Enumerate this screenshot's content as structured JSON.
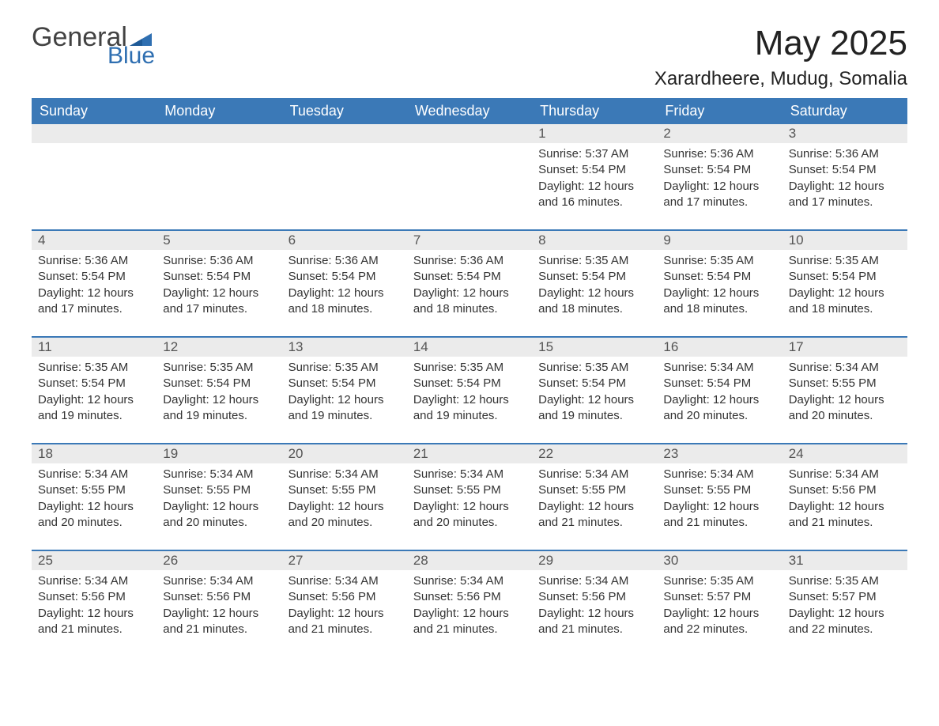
{
  "brand": {
    "word1": "General",
    "word2": "Blue"
  },
  "colors": {
    "header_bg": "#3b79b7",
    "header_text": "#ffffff",
    "daynum_bg": "#ebebeb",
    "row_divider": "#3b79b7",
    "brand_blue": "#2f6fb1",
    "body_text": "#333333",
    "page_bg": "#ffffff"
  },
  "header": {
    "month_title": "May 2025",
    "location": "Xarardheere, Mudug, Somalia"
  },
  "weekdays": [
    "Sunday",
    "Monday",
    "Tuesday",
    "Wednesday",
    "Thursday",
    "Friday",
    "Saturday"
  ],
  "weeks": [
    [
      {
        "day": "",
        "sunrise": "",
        "sunset": "",
        "daylight": ""
      },
      {
        "day": "",
        "sunrise": "",
        "sunset": "",
        "daylight": ""
      },
      {
        "day": "",
        "sunrise": "",
        "sunset": "",
        "daylight": ""
      },
      {
        "day": "",
        "sunrise": "",
        "sunset": "",
        "daylight": ""
      },
      {
        "day": "1",
        "sunrise": "Sunrise: 5:37 AM",
        "sunset": "Sunset: 5:54 PM",
        "daylight": "Daylight: 12 hours and 16 minutes."
      },
      {
        "day": "2",
        "sunrise": "Sunrise: 5:36 AM",
        "sunset": "Sunset: 5:54 PM",
        "daylight": "Daylight: 12 hours and 17 minutes."
      },
      {
        "day": "3",
        "sunrise": "Sunrise: 5:36 AM",
        "sunset": "Sunset: 5:54 PM",
        "daylight": "Daylight: 12 hours and 17 minutes."
      }
    ],
    [
      {
        "day": "4",
        "sunrise": "Sunrise: 5:36 AM",
        "sunset": "Sunset: 5:54 PM",
        "daylight": "Daylight: 12 hours and 17 minutes."
      },
      {
        "day": "5",
        "sunrise": "Sunrise: 5:36 AM",
        "sunset": "Sunset: 5:54 PM",
        "daylight": "Daylight: 12 hours and 17 minutes."
      },
      {
        "day": "6",
        "sunrise": "Sunrise: 5:36 AM",
        "sunset": "Sunset: 5:54 PM",
        "daylight": "Daylight: 12 hours and 18 minutes."
      },
      {
        "day": "7",
        "sunrise": "Sunrise: 5:36 AM",
        "sunset": "Sunset: 5:54 PM",
        "daylight": "Daylight: 12 hours and 18 minutes."
      },
      {
        "day": "8",
        "sunrise": "Sunrise: 5:35 AM",
        "sunset": "Sunset: 5:54 PM",
        "daylight": "Daylight: 12 hours and 18 minutes."
      },
      {
        "day": "9",
        "sunrise": "Sunrise: 5:35 AM",
        "sunset": "Sunset: 5:54 PM",
        "daylight": "Daylight: 12 hours and 18 minutes."
      },
      {
        "day": "10",
        "sunrise": "Sunrise: 5:35 AM",
        "sunset": "Sunset: 5:54 PM",
        "daylight": "Daylight: 12 hours and 18 minutes."
      }
    ],
    [
      {
        "day": "11",
        "sunrise": "Sunrise: 5:35 AM",
        "sunset": "Sunset: 5:54 PM",
        "daylight": "Daylight: 12 hours and 19 minutes."
      },
      {
        "day": "12",
        "sunrise": "Sunrise: 5:35 AM",
        "sunset": "Sunset: 5:54 PM",
        "daylight": "Daylight: 12 hours and 19 minutes."
      },
      {
        "day": "13",
        "sunrise": "Sunrise: 5:35 AM",
        "sunset": "Sunset: 5:54 PM",
        "daylight": "Daylight: 12 hours and 19 minutes."
      },
      {
        "day": "14",
        "sunrise": "Sunrise: 5:35 AM",
        "sunset": "Sunset: 5:54 PM",
        "daylight": "Daylight: 12 hours and 19 minutes."
      },
      {
        "day": "15",
        "sunrise": "Sunrise: 5:35 AM",
        "sunset": "Sunset: 5:54 PM",
        "daylight": "Daylight: 12 hours and 19 minutes."
      },
      {
        "day": "16",
        "sunrise": "Sunrise: 5:34 AM",
        "sunset": "Sunset: 5:54 PM",
        "daylight": "Daylight: 12 hours and 20 minutes."
      },
      {
        "day": "17",
        "sunrise": "Sunrise: 5:34 AM",
        "sunset": "Sunset: 5:55 PM",
        "daylight": "Daylight: 12 hours and 20 minutes."
      }
    ],
    [
      {
        "day": "18",
        "sunrise": "Sunrise: 5:34 AM",
        "sunset": "Sunset: 5:55 PM",
        "daylight": "Daylight: 12 hours and 20 minutes."
      },
      {
        "day": "19",
        "sunrise": "Sunrise: 5:34 AM",
        "sunset": "Sunset: 5:55 PM",
        "daylight": "Daylight: 12 hours and 20 minutes."
      },
      {
        "day": "20",
        "sunrise": "Sunrise: 5:34 AM",
        "sunset": "Sunset: 5:55 PM",
        "daylight": "Daylight: 12 hours and 20 minutes."
      },
      {
        "day": "21",
        "sunrise": "Sunrise: 5:34 AM",
        "sunset": "Sunset: 5:55 PM",
        "daylight": "Daylight: 12 hours and 20 minutes."
      },
      {
        "day": "22",
        "sunrise": "Sunrise: 5:34 AM",
        "sunset": "Sunset: 5:55 PM",
        "daylight": "Daylight: 12 hours and 21 minutes."
      },
      {
        "day": "23",
        "sunrise": "Sunrise: 5:34 AM",
        "sunset": "Sunset: 5:55 PM",
        "daylight": "Daylight: 12 hours and 21 minutes."
      },
      {
        "day": "24",
        "sunrise": "Sunrise: 5:34 AM",
        "sunset": "Sunset: 5:56 PM",
        "daylight": "Daylight: 12 hours and 21 minutes."
      }
    ],
    [
      {
        "day": "25",
        "sunrise": "Sunrise: 5:34 AM",
        "sunset": "Sunset: 5:56 PM",
        "daylight": "Daylight: 12 hours and 21 minutes."
      },
      {
        "day": "26",
        "sunrise": "Sunrise: 5:34 AM",
        "sunset": "Sunset: 5:56 PM",
        "daylight": "Daylight: 12 hours and 21 minutes."
      },
      {
        "day": "27",
        "sunrise": "Sunrise: 5:34 AM",
        "sunset": "Sunset: 5:56 PM",
        "daylight": "Daylight: 12 hours and 21 minutes."
      },
      {
        "day": "28",
        "sunrise": "Sunrise: 5:34 AM",
        "sunset": "Sunset: 5:56 PM",
        "daylight": "Daylight: 12 hours and 21 minutes."
      },
      {
        "day": "29",
        "sunrise": "Sunrise: 5:34 AM",
        "sunset": "Sunset: 5:56 PM",
        "daylight": "Daylight: 12 hours and 21 minutes."
      },
      {
        "day": "30",
        "sunrise": "Sunrise: 5:35 AM",
        "sunset": "Sunset: 5:57 PM",
        "daylight": "Daylight: 12 hours and 22 minutes."
      },
      {
        "day": "31",
        "sunrise": "Sunrise: 5:35 AM",
        "sunset": "Sunset: 5:57 PM",
        "daylight": "Daylight: 12 hours and 22 minutes."
      }
    ]
  ]
}
